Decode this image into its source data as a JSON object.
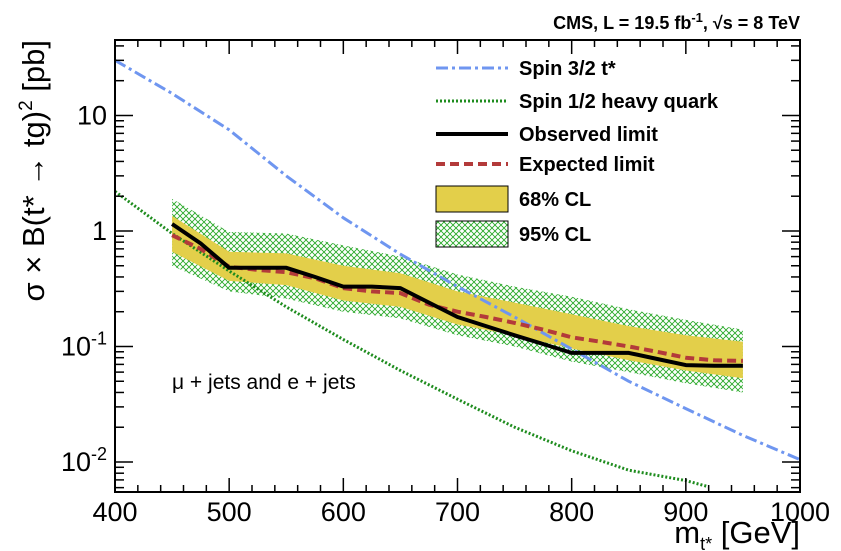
{
  "header": {
    "experiment": "CMS, L = 19.5 fb",
    "lumi_exp": "-1",
    "energy": ", √s = 8 TeV"
  },
  "annotation": "μ + jets and e + jets",
  "chart_data": {
    "type": "line",
    "title": "",
    "xlabel": "m",
    "xlabel_sub": "t*",
    "xlabel_unit": " [GeV]",
    "ylabel": "σ × B(t* → tg)",
    "ylabel_exp": "2",
    "ylabel_unit": " [pb]",
    "xlim": [
      400,
      1000
    ],
    "ylim": [
      0.0055,
      45
    ],
    "yscale": "log",
    "grid": false,
    "legend_position": "top-right",
    "xticks": [
      400,
      500,
      600,
      700,
      800,
      900,
      1000
    ],
    "yticks": [
      {
        "value": 0.01,
        "base": "10",
        "exp": "-2"
      },
      {
        "value": 0.1,
        "base": "10",
        "exp": "-1"
      },
      {
        "value": 1,
        "base": "1",
        "exp": ""
      },
      {
        "value": 10,
        "base": "10",
        "exp": ""
      }
    ],
    "series": [
      {
        "name": "Spin 3/2 t*",
        "style": "dashdot",
        "color": "#6f96f0",
        "x": [
          400,
          450,
          500,
          550,
          600,
          650,
          700,
          750,
          800,
          850,
          900,
          950,
          1000
        ],
        "y": [
          30,
          15.5,
          7.5,
          3.0,
          1.3,
          0.63,
          0.33,
          0.18,
          0.095,
          0.05,
          0.029,
          0.017,
          0.0105
        ]
      },
      {
        "name": "Spin 1/2 heavy quark",
        "style": "dotted",
        "color": "#1e8c1e",
        "x": [
          400,
          450,
          500,
          550,
          600,
          650,
          700,
          750,
          800,
          850,
          900,
          920
        ],
        "y": [
          2.2,
          0.95,
          0.45,
          0.22,
          0.115,
          0.062,
          0.035,
          0.02,
          0.0125,
          0.0085,
          0.0069,
          0.0061
        ]
      },
      {
        "name": "Observed limit",
        "style": "solid",
        "color": "#000000",
        "x": [
          450,
          475,
          500,
          525,
          550,
          575,
          600,
          625,
          650,
          675,
          700,
          725,
          750,
          775,
          800,
          825,
          850,
          875,
          900,
          925,
          950
        ],
        "y": [
          1.15,
          0.78,
          0.48,
          0.48,
          0.48,
          0.4,
          0.33,
          0.33,
          0.32,
          0.24,
          0.18,
          0.15,
          0.125,
          0.105,
          0.088,
          0.088,
          0.088,
          0.078,
          0.069,
          0.068,
          0.068
        ]
      },
      {
        "name": "Expected limit",
        "style": "dashed",
        "color": "#b33a3a",
        "x": [
          450,
          475,
          500,
          525,
          550,
          575,
          600,
          625,
          650,
          675,
          700,
          725,
          750,
          775,
          800,
          825,
          850,
          875,
          900,
          925,
          950
        ],
        "y": [
          0.92,
          0.7,
          0.49,
          0.46,
          0.44,
          0.39,
          0.32,
          0.3,
          0.29,
          0.23,
          0.2,
          0.18,
          0.16,
          0.14,
          0.12,
          0.11,
          0.1,
          0.09,
          0.08,
          0.076,
          0.075
        ]
      }
    ],
    "bands": [
      {
        "name": "95% CL",
        "fill": "crosshatch",
        "color": "#29a829",
        "x": [
          450,
          500,
          550,
          600,
          650,
          700,
          750,
          800,
          850,
          900,
          950
        ],
        "low": [
          0.5,
          0.3,
          0.26,
          0.2,
          0.175,
          0.125,
          0.1,
          0.074,
          0.06,
          0.048,
          0.04
        ],
        "high": [
          1.9,
          0.98,
          0.95,
          0.75,
          0.6,
          0.42,
          0.33,
          0.27,
          0.21,
          0.17,
          0.14
        ]
      },
      {
        "name": "68% CL",
        "fill": "solid",
        "color": "#e3cf4a",
        "x": [
          450,
          500,
          550,
          600,
          650,
          700,
          750,
          800,
          850,
          900,
          950
        ],
        "low": [
          0.66,
          0.37,
          0.34,
          0.25,
          0.22,
          0.155,
          0.125,
          0.096,
          0.076,
          0.062,
          0.053
        ],
        "high": [
          1.35,
          0.66,
          0.64,
          0.5,
          0.43,
          0.3,
          0.24,
          0.19,
          0.15,
          0.125,
          0.11
        ]
      }
    ]
  }
}
